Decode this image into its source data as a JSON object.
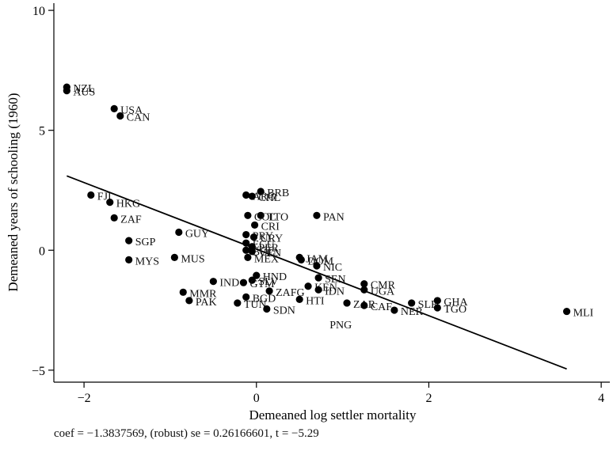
{
  "chart_data": {
    "type": "scatter",
    "title": "",
    "xlabel": "Demeaned log settler mortality",
    "ylabel": "Demeaned years of schooling (1960)",
    "xlim": [
      -2.35,
      4.1
    ],
    "ylim": [
      -5.5,
      10.3
    ],
    "xticks": [
      -2,
      0,
      2,
      4
    ],
    "yticks": [
      -5,
      0,
      5,
      10
    ],
    "grid": false,
    "points": [
      {
        "label": "NZL",
        "x": -2.2,
        "y": 6.8
      },
      {
        "label": "AUS",
        "x": -2.2,
        "y": 6.65
      },
      {
        "label": "USA",
        "x": -1.65,
        "y": 5.9
      },
      {
        "label": "CAN",
        "x": -1.58,
        "y": 5.6
      },
      {
        "label": "FJI",
        "x": -1.92,
        "y": 2.3
      },
      {
        "label": "HKG",
        "x": -1.7,
        "y": 2.0
      },
      {
        "label": "ZAF",
        "x": -1.65,
        "y": 1.35
      },
      {
        "label": "SGP",
        "x": -1.48,
        "y": 0.4
      },
      {
        "label": "MYS",
        "x": -1.48,
        "y": -0.4
      },
      {
        "label": "GUY",
        "x": -0.9,
        "y": 0.75
      },
      {
        "label": "MUS",
        "x": -0.95,
        "y": -0.3
      },
      {
        "label": "BRB",
        "x": 0.05,
        "y": 2.45
      },
      {
        "label": "ARG",
        "x": -0.12,
        "y": 2.3
      },
      {
        "label": "CHL",
        "x": -0.05,
        "y": 2.25
      },
      {
        "label": "TTO",
        "x": 0.05,
        "y": 1.45
      },
      {
        "label": "COL",
        "x": -0.1,
        "y": 1.45
      },
      {
        "label": "PAN",
        "x": 0.7,
        "y": 1.45
      },
      {
        "label": "CRI",
        "x": -0.02,
        "y": 1.05
      },
      {
        "label": "PRY",
        "x": -0.12,
        "y": 0.65
      },
      {
        "label": "URY",
        "x": -0.03,
        "y": 0.55
      },
      {
        "label": "ECU",
        "x": -0.12,
        "y": 0.3
      },
      {
        "label": "PER",
        "x": -0.05,
        "y": 0.15
      },
      {
        "label": "BOL",
        "x": -0.12,
        "y": 0.0
      },
      {
        "label": "VEN",
        "x": -0.05,
        "y": -0.05
      },
      {
        "label": "MEX",
        "x": -0.1,
        "y": -0.3
      },
      {
        "label": "JAM",
        "x": 0.5,
        "y": -0.3
      },
      {
        "label": "DOM",
        "x": 0.52,
        "y": -0.4
      },
      {
        "label": "NIC",
        "x": 0.7,
        "y": -0.65
      },
      {
        "label": "SEN",
        "x": 0.72,
        "y": -1.15
      },
      {
        "label": "HND",
        "x": 0.0,
        "y": -1.05
      },
      {
        "label": "SLV",
        "x": -0.05,
        "y": -1.25
      },
      {
        "label": "GTM",
        "x": -0.15,
        "y": -1.35
      },
      {
        "label": "IND",
        "x": -0.5,
        "y": -1.3
      },
      {
        "label": "ZAFG",
        "x": 0.15,
        "y": -1.7
      },
      {
        "label": "BGD",
        "x": -0.12,
        "y": -1.95
      },
      {
        "label": "TUN",
        "x": -0.22,
        "y": -2.2
      },
      {
        "label": "SDN",
        "x": 0.12,
        "y": -2.45
      },
      {
        "label": "HTI",
        "x": 0.5,
        "y": -2.05
      },
      {
        "label": "KEN",
        "x": 0.6,
        "y": -1.5
      },
      {
        "label": "IDN",
        "x": 0.72,
        "y": -1.65
      },
      {
        "label": "MMR",
        "x": -0.85,
        "y": -1.75
      },
      {
        "label": "PAK",
        "x": -0.78,
        "y": -2.1
      },
      {
        "label": "CMR",
        "x": 1.25,
        "y": -1.4
      },
      {
        "label": "UGA",
        "x": 1.25,
        "y": -1.65
      },
      {
        "label": "ZAR",
        "x": 1.05,
        "y": -2.2
      },
      {
        "label": "CAF",
        "x": 1.25,
        "y": -2.3
      },
      {
        "label": "NER",
        "x": 1.6,
        "y": -2.5
      },
      {
        "label": "SLE",
        "x": 1.8,
        "y": -2.2
      },
      {
        "label": "GHA",
        "x": 2.1,
        "y": -2.1
      },
      {
        "label": "TGO",
        "x": 2.1,
        "y": -2.4
      },
      {
        "label": "MLI",
        "x": 3.6,
        "y": -2.55
      },
      {
        "label": "PNG",
        "x": null,
        "y": null,
        "label_x": 0.85,
        "label_y": -3.1
      }
    ],
    "fit_line": {
      "x": [
        -2.2,
        3.6
      ],
      "y": [
        3.1,
        -4.95
      ]
    },
    "caption": "coef = −1.3837569, (robust) se = 0.26166601, t = −5.29"
  }
}
